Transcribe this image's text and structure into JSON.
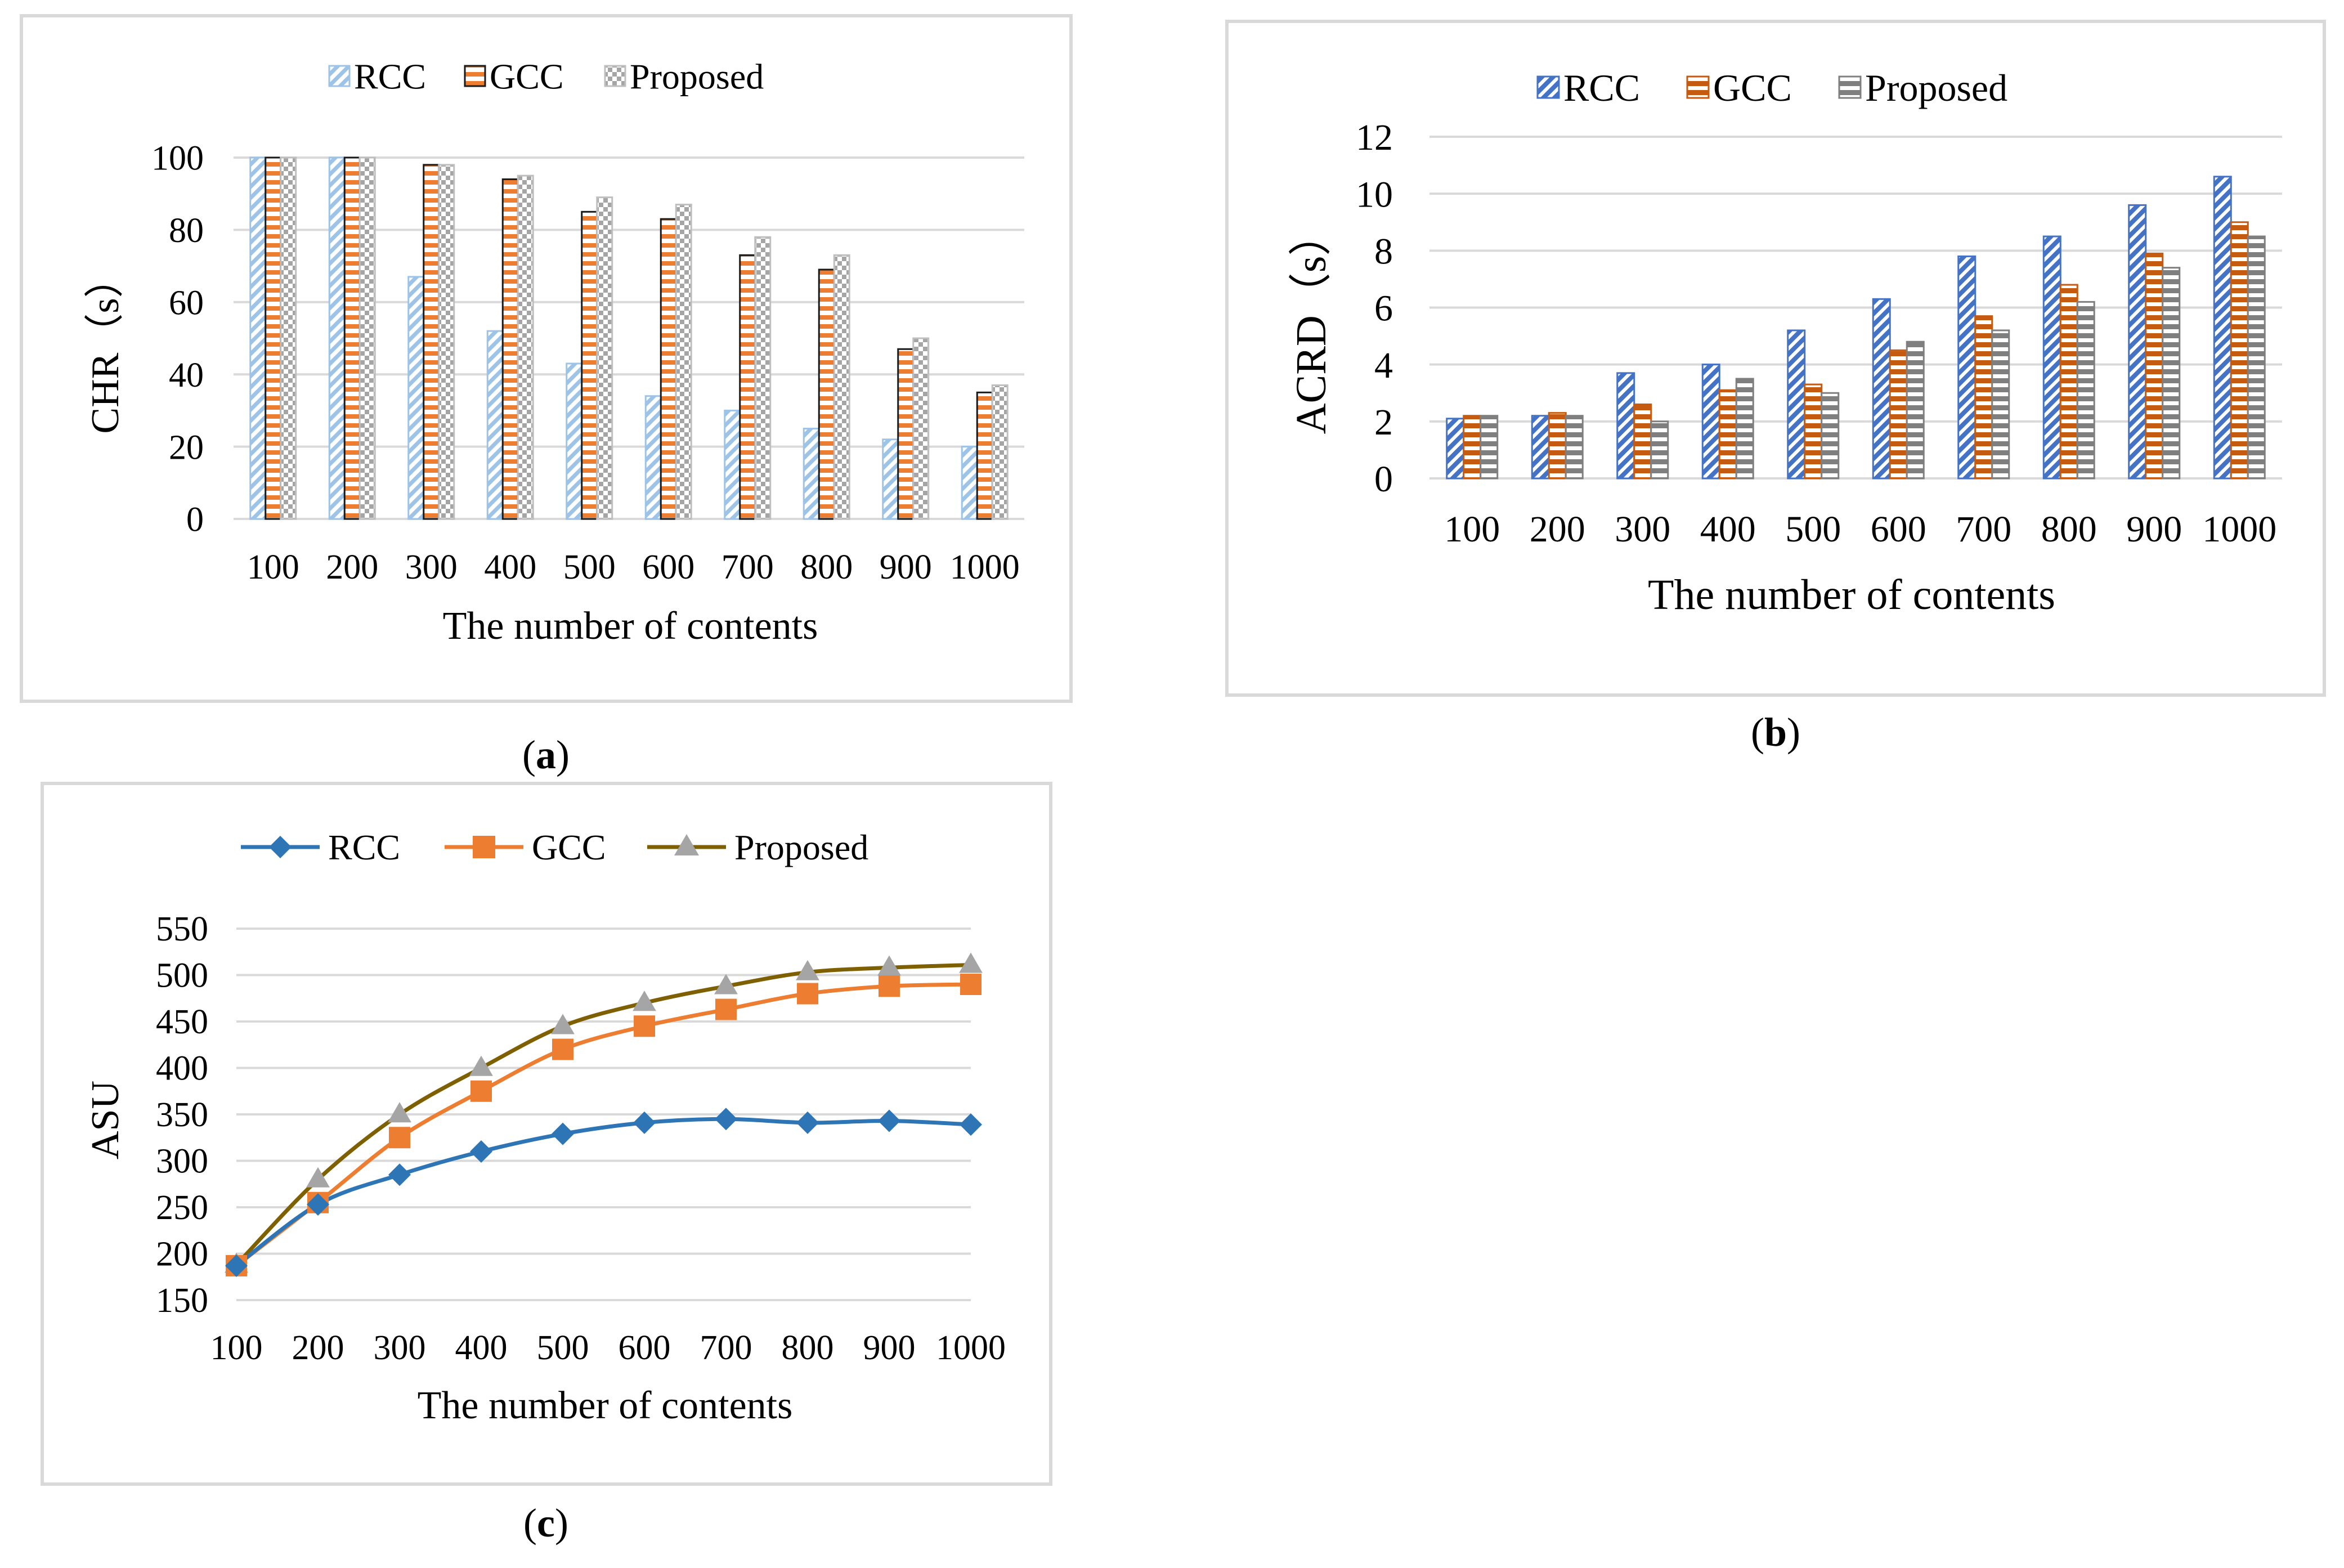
{
  "chart_data": [
    {
      "id": "a",
      "type": "bar",
      "caption_open": "(",
      "caption_letter": "a",
      "caption_close": ")",
      "title": "",
      "categories": [
        "100",
        "200",
        "300",
        "400",
        "500",
        "600",
        "700",
        "800",
        "900",
        "1000"
      ],
      "series": [
        {
          "name": "RCC",
          "values": [
            100,
            100,
            67,
            52,
            43,
            34,
            30,
            25,
            22,
            20
          ]
        },
        {
          "name": "GCC",
          "values": [
            100,
            100,
            98,
            94,
            85,
            83,
            73,
            69,
            47,
            35
          ]
        },
        {
          "name": "Proposed",
          "values": [
            100,
            100,
            98,
            95,
            89,
            87,
            78,
            73,
            50,
            37
          ]
        }
      ],
      "xlabel": "The number of contents",
      "ylabel": "CHR（s）",
      "ylim": [
        0,
        100
      ],
      "yticks": [
        "0",
        "20",
        "40",
        "60",
        "80",
        "100"
      ],
      "legend": "top-center",
      "grid": true
    },
    {
      "id": "b",
      "type": "bar",
      "caption_open": "(",
      "caption_letter": "b",
      "caption_close": ")",
      "title": "",
      "categories": [
        "100",
        "200",
        "300",
        "400",
        "500",
        "600",
        "700",
        "800",
        "900",
        "1000"
      ],
      "series": [
        {
          "name": "RCC",
          "values": [
            2.1,
            2.2,
            3.7,
            4.0,
            5.2,
            6.3,
            7.8,
            8.5,
            9.6,
            10.6
          ]
        },
        {
          "name": "GCC",
          "values": [
            2.2,
            2.3,
            2.6,
            3.1,
            3.3,
            4.5,
            5.7,
            6.8,
            7.9,
            9.0
          ]
        },
        {
          "name": "Proposed",
          "values": [
            2.2,
            2.2,
            2.0,
            3.5,
            3.0,
            4.8,
            5.2,
            6.2,
            7.4,
            8.5
          ]
        }
      ],
      "xlabel": "The number of contents",
      "ylabel": "ACRD（s）",
      "ylim": [
        0,
        12
      ],
      "yticks": [
        "0",
        "2",
        "4",
        "6",
        "8",
        "10",
        "12"
      ],
      "legend": "top-center",
      "grid": true
    },
    {
      "id": "c",
      "type": "line",
      "caption_open": "(",
      "caption_letter": "c",
      "caption_close": ")",
      "title": "",
      "x": [
        100,
        200,
        300,
        400,
        500,
        600,
        700,
        800,
        900,
        1000
      ],
      "categories": [
        "100",
        "200",
        "300",
        "400",
        "500",
        "600",
        "700",
        "800",
        "900",
        "1000"
      ],
      "series": [
        {
          "name": "RCC",
          "values": [
            187,
            253,
            285,
            310,
            329,
            341,
            345,
            341,
            343,
            339
          ]
        },
        {
          "name": "GCC",
          "values": [
            187,
            255,
            325,
            375,
            420,
            445,
            463,
            480,
            488,
            490
          ]
        },
        {
          "name": "Proposed",
          "values": [
            188,
            280,
            350,
            400,
            445,
            470,
            488,
            503,
            508,
            511
          ]
        }
      ],
      "xlabel": "The number of contents",
      "ylabel": "ASU",
      "ylim": [
        150,
        550
      ],
      "yticks": [
        "150",
        "200",
        "250",
        "300",
        "350",
        "400",
        "450",
        "500",
        "550"
      ],
      "legend": "top-center",
      "grid": true
    }
  ],
  "colors": {
    "rcc": "#4472c4",
    "gcc": "#ed7d31",
    "proposed_bar": "#a5a5a5",
    "rcc_line": "#2e75b6",
    "gcc_line": "#ed7d31",
    "proposed_line": "#7f6000",
    "proposed_marker": "#a5a5a5"
  }
}
